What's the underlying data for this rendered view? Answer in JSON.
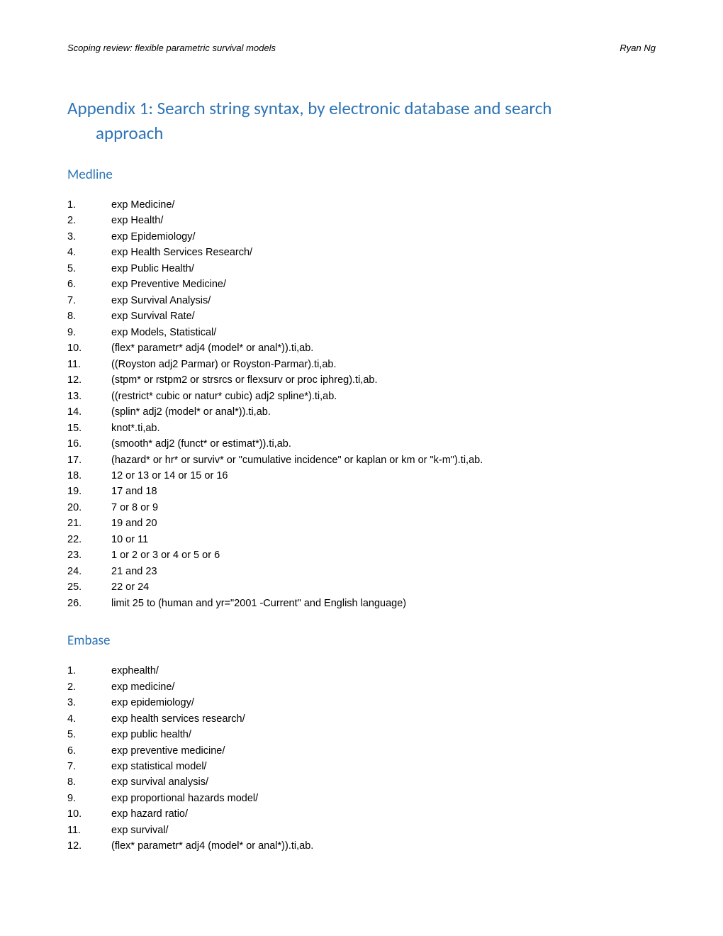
{
  "header": {
    "left": "Scoping review: flexible parametric survival models",
    "right": "Ryan Ng"
  },
  "title": {
    "line1": "Appendix 1: Search string syntax, by electronic database and search",
    "line2": "approach"
  },
  "sections": [
    {
      "heading": "Medline",
      "items": [
        {
          "num": "1.",
          "text": "exp Medicine/"
        },
        {
          "num": "2.",
          "text": "exp Health/"
        },
        {
          "num": "3.",
          "text": "exp Epidemiology/"
        },
        {
          "num": "4.",
          "text": "exp Health Services Research/"
        },
        {
          "num": "5.",
          "text": "exp Public Health/"
        },
        {
          "num": "6.",
          "text": "exp Preventive Medicine/"
        },
        {
          "num": "7.",
          "text": "exp Survival Analysis/"
        },
        {
          "num": "8.",
          "text": "exp Survival Rate/"
        },
        {
          "num": "9.",
          "text": "exp Models, Statistical/"
        },
        {
          "num": "10.",
          "text": "(flex* parametr* adj4 (model* or anal*)).ti,ab."
        },
        {
          "num": "11.",
          "text": "((Royston adj2 Parmar) or Royston-Parmar).ti,ab."
        },
        {
          "num": "12.",
          "text": "(stpm* or rstpm2 or strsrcs or flexsurv or proc iphreg).ti,ab."
        },
        {
          "num": "13.",
          "text": "((restrict* cubic or natur* cubic) adj2 spline*).ti,ab."
        },
        {
          "num": "14.",
          "text": "(splin* adj2 (model* or anal*)).ti,ab."
        },
        {
          "num": "15.",
          "text": "knot*.ti,ab."
        },
        {
          "num": "16.",
          "text": "(smooth* adj2 (funct* or estimat*)).ti,ab."
        },
        {
          "num": "17.",
          "text": "(hazard* or hr* or surviv* or \"cumulative incidence\" or kaplan or km or \"k-m\").ti,ab."
        },
        {
          "num": "18.",
          "text": "12 or 13 or 14 or 15 or 16"
        },
        {
          "num": "19.",
          "text": "17 and 18"
        },
        {
          "num": "20.",
          "text": "7 or 8 or 9"
        },
        {
          "num": "21.",
          "text": "19 and 20"
        },
        {
          "num": "22.",
          "text": "10 or 11"
        },
        {
          "num": "23.",
          "text": "1 or 2 or 3 or 4 or 5 or 6"
        },
        {
          "num": "24.",
          "text": "21 and 23"
        },
        {
          "num": "25.",
          "text": "22 or 24"
        },
        {
          "num": "26.",
          "text": "limit 25 to (human and yr=\"2001 -Current\" and English language)"
        }
      ]
    },
    {
      "heading": "Embase",
      "items": [
        {
          "num": "1.",
          "text": "exphealth/"
        },
        {
          "num": "2.",
          "text": "exp medicine/"
        },
        {
          "num": "3.",
          "text": "exp epidemiology/"
        },
        {
          "num": "4.",
          "text": "exp health services research/"
        },
        {
          "num": "5.",
          "text": "exp public health/"
        },
        {
          "num": "6.",
          "text": "exp preventive medicine/"
        },
        {
          "num": "7.",
          "text": "exp statistical model/"
        },
        {
          "num": "8.",
          "text": "exp survival analysis/"
        },
        {
          "num": "9.",
          "text": "exp proportional hazards model/"
        },
        {
          "num": "10.",
          "text": "exp hazard ratio/"
        },
        {
          "num": "11.",
          "text": "exp survival/"
        },
        {
          "num": "12.",
          "text": "(flex* parametr* adj4 (model* or anal*)).ti,ab."
        }
      ]
    }
  ],
  "colors": {
    "heading": "#2e74b5",
    "text": "#000000",
    "background": "#ffffff"
  },
  "typography": {
    "header_fontsize": 13,
    "title_fontsize": 25,
    "section_heading_fontsize": 19,
    "body_fontsize": 14.5
  }
}
